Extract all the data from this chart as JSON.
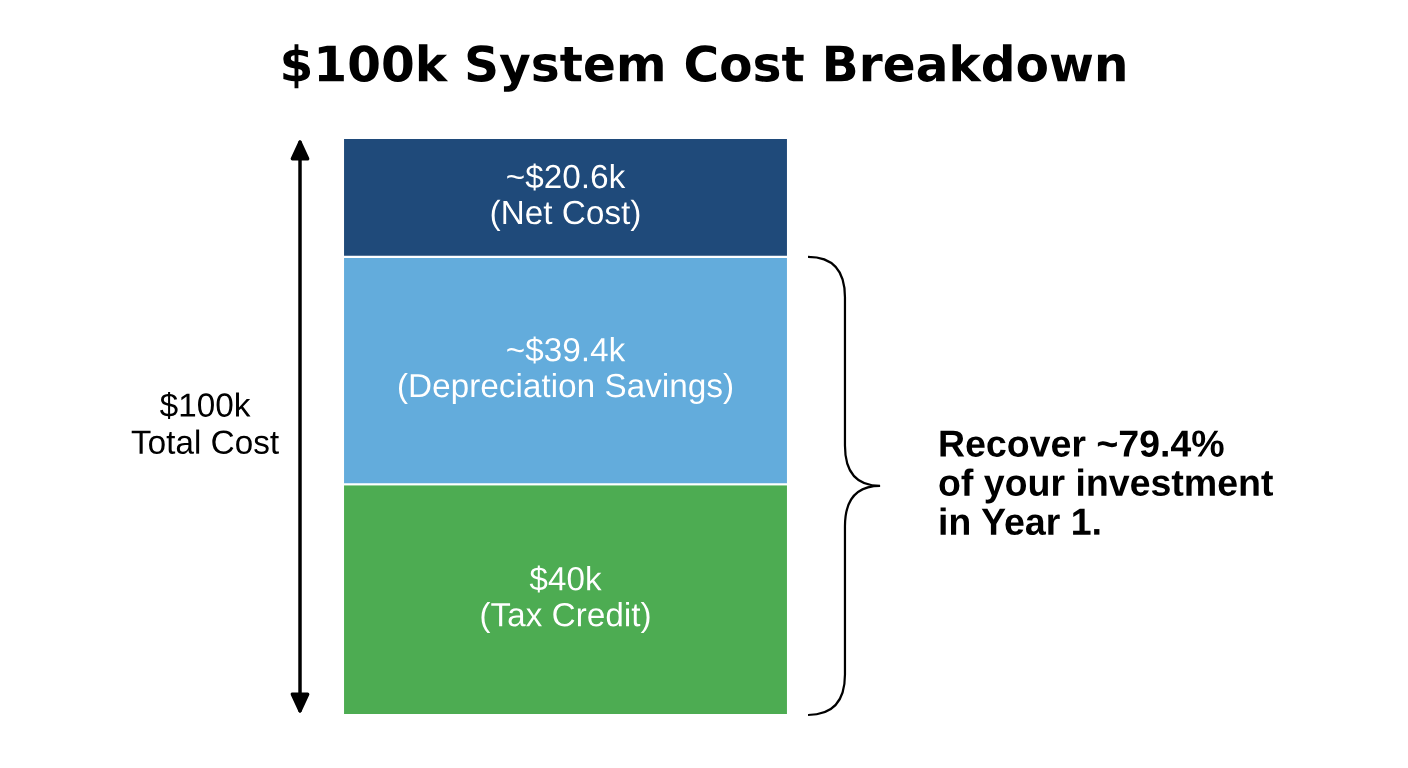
{
  "chart_data": {
    "type": "bar",
    "title": "$100k System Cost Breakdown",
    "categories": [
      null
    ],
    "stacked": true,
    "tick_labels": false,
    "series": [
      {
        "color": "#4dac52",
        "values": [
          40
        ],
        "value_labels": [
          "$40k\n(Tax Credit)"
        ]
      },
      {
        "color": "#63acdc",
        "values": [
          39.4
        ],
        "value_labels": [
          "~$39.4k\n(Depreciation Savings)"
        ]
      },
      {
        "color": "#1f4a7a",
        "values": [
          20.6
        ],
        "value_labels": [
          "~$20.6k\n(Net Cost)"
        ]
      }
    ],
    "annotations": [
      "$100k\nTotal Cost",
      "Recover ~79.4%\nof your investment\nin Year 1."
    ]
  }
}
